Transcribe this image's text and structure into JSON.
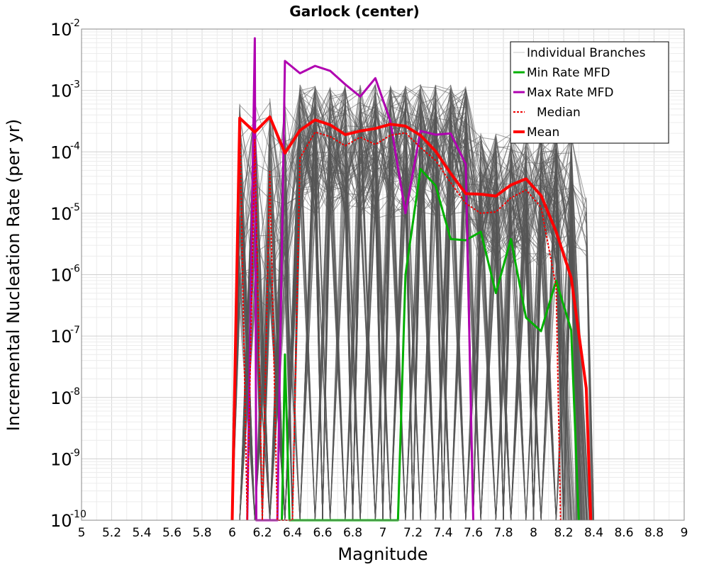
{
  "chart_data": {
    "type": "line",
    "title": "Garlock (center)",
    "xlabel": "Magnitude",
    "ylabel": "Incremental Nucleation Rate (per yr)",
    "xlim": [
      5,
      9
    ],
    "ylim_log10": [
      -10,
      -2
    ],
    "y_scale": "log",
    "grid": true,
    "legend_position": "top-right",
    "x_ticks": [
      "5",
      "5.2",
      "5.4",
      "5.6",
      "5.8",
      "6",
      "6.2",
      "6.4",
      "6.6",
      "6.8",
      "7",
      "7.2",
      "7.4",
      "7.6",
      "7.8",
      "8",
      "8.2",
      "8.4",
      "8.6",
      "8.8",
      "9"
    ],
    "y_ticks": [
      {
        "base": "10",
        "exp": "-2"
      },
      {
        "base": "10",
        "exp": "-3"
      },
      {
        "base": "10",
        "exp": "-4"
      },
      {
        "base": "10",
        "exp": "-5"
      },
      {
        "base": "10",
        "exp": "-6"
      },
      {
        "base": "10",
        "exp": "-7"
      },
      {
        "base": "10",
        "exp": "-8"
      },
      {
        "base": "10",
        "exp": "-9"
      },
      {
        "base": "10",
        "exp": "-10"
      }
    ],
    "legend": [
      {
        "label": "Individual Branches",
        "color": "#c8c8c8",
        "style": "thin"
      },
      {
        "label": "Min Rate MFD",
        "color": "#00b000",
        "style": "solid"
      },
      {
        "label": "Max Rate MFD",
        "color": "#b000b0",
        "style": "solid"
      },
      {
        "label": "Median",
        "color": "#ee0000",
        "style": "dotted"
      },
      {
        "label": "Mean",
        "color": "#ff0000",
        "style": "thick"
      }
    ],
    "series": [
      {
        "name": "Mean",
        "color": "#ff0000",
        "x": [
          6.0,
          6.05,
          6.15,
          6.25,
          6.35,
          6.45,
          6.55,
          6.65,
          6.75,
          6.85,
          6.95,
          7.05,
          7.15,
          7.25,
          7.35,
          7.45,
          7.55,
          7.65,
          7.75,
          7.85,
          7.95,
          8.05,
          8.15,
          8.25,
          8.35,
          8.38
        ],
        "log10_y": [
          -10,
          -3.45,
          -3.68,
          -3.43,
          -4.02,
          -3.65,
          -3.48,
          -3.56,
          -3.72,
          -3.66,
          -3.62,
          -3.55,
          -3.58,
          -3.73,
          -3.99,
          -4.35,
          -4.68,
          -4.69,
          -4.72,
          -4.54,
          -4.44,
          -4.71,
          -5.3,
          -6.05,
          -7.85,
          -10
        ]
      },
      {
        "name": "Median",
        "color": "#ee0000",
        "x": [
          6.0,
          6.05,
          6.1,
          6.15,
          6.2,
          6.25,
          6.3,
          6.35,
          6.4,
          6.45,
          6.55,
          6.65,
          6.75,
          6.85,
          6.95,
          7.05,
          7.15,
          7.25,
          7.35,
          7.45,
          7.55,
          7.65,
          7.75,
          7.85,
          7.95,
          8.05,
          8.15,
          8.18
        ],
        "log10_y": [
          -10,
          -3.45,
          -10,
          -3.8,
          -10,
          -4.32,
          -10,
          -10,
          -10,
          -4.1,
          -3.68,
          -3.75,
          -3.9,
          -3.76,
          -3.88,
          -3.73,
          -3.69,
          -3.93,
          -4.14,
          -4.5,
          -4.84,
          -5.0,
          -4.98,
          -4.75,
          -4.62,
          -4.9,
          -6.2,
          -10
        ]
      },
      {
        "name": "Max Rate MFD",
        "color": "#b000b0",
        "x": [
          6.1,
          6.15,
          6.16,
          6.3,
          6.35,
          6.45,
          6.55,
          6.65,
          6.75,
          6.85,
          6.95,
          7.05,
          7.15,
          7.25,
          7.35,
          7.45,
          7.55,
          7.6
        ],
        "log10_y": [
          -10,
          -2.15,
          -10,
          -10,
          -2.52,
          -2.72,
          -2.6,
          -2.68,
          -2.9,
          -3.1,
          -2.8,
          -3.5,
          -5.0,
          -3.66,
          -3.72,
          -3.7,
          -4.2,
          -10
        ]
      },
      {
        "name": "Min Rate MFD",
        "color": "#00b000",
        "x": [
          6.33,
          6.35,
          6.38,
          7.1,
          7.15,
          7.25,
          7.35,
          7.45,
          7.55,
          7.65,
          7.75,
          7.85,
          7.95,
          8.05,
          8.15,
          8.25,
          8.3
        ],
        "log10_y": [
          -10,
          -7.3,
          -10,
          -10,
          -6.0,
          -4.28,
          -4.55,
          -5.42,
          -5.44,
          -5.3,
          -6.3,
          -5.42,
          -6.7,
          -6.92,
          -6.1,
          -6.9,
          -10
        ]
      }
    ]
  }
}
